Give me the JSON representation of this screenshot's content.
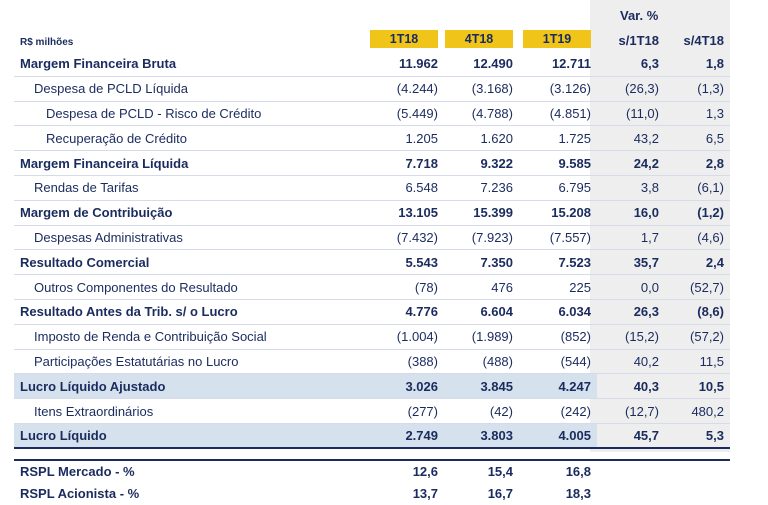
{
  "header": {
    "unit_label": "R$ milhões",
    "var_title": "Var. %",
    "periods": [
      "1T18",
      "4T18",
      "1T19"
    ],
    "var_cols": [
      "s/1T18",
      "s/4T18"
    ]
  },
  "rows": [
    {
      "label": "Margem Financeira Bruta",
      "v": [
        "11.962",
        "12.490",
        "12.711",
        "6,3",
        "1,8"
      ]
    },
    {
      "label": "Despesa de PCLD Líquida",
      "v": [
        "(4.244)",
        "(3.168)",
        "(3.126)",
        "(26,3)",
        "(1,3)"
      ]
    },
    {
      "label": "Despesa de PCLD - Risco de Crédito",
      "v": [
        "(5.449)",
        "(4.788)",
        "(4.851)",
        "(11,0)",
        "1,3"
      ]
    },
    {
      "label": "Recuperação de Crédito",
      "v": [
        "1.205",
        "1.620",
        "1.725",
        "43,2",
        "6,5"
      ]
    },
    {
      "label": "Margem Financeira Líquida",
      "v": [
        "7.718",
        "9.322",
        "9.585",
        "24,2",
        "2,8"
      ]
    },
    {
      "label": "Rendas de Tarifas",
      "v": [
        "6.548",
        "7.236",
        "6.795",
        "3,8",
        "(6,1)"
      ]
    },
    {
      "label": "Margem de Contribuição",
      "v": [
        "13.105",
        "15.399",
        "15.208",
        "16,0",
        "(1,2)"
      ]
    },
    {
      "label": "Despesas Administrativas",
      "v": [
        "(7.432)",
        "(7.923)",
        "(7.557)",
        "1,7",
        "(4,6)"
      ]
    },
    {
      "label": "Resultado Comercial",
      "v": [
        "5.543",
        "7.350",
        "7.523",
        "35,7",
        "2,4"
      ]
    },
    {
      "label": "Outros Componentes do Resultado",
      "v": [
        "(78)",
        "476",
        "225",
        "0,0",
        "(52,7)"
      ]
    },
    {
      "label": "Resultado Antes da Trib. s/ o Lucro",
      "v": [
        "4.776",
        "6.604",
        "6.034",
        "26,3",
        "(8,6)"
      ]
    },
    {
      "label": "Imposto de Renda e Contribuição Social",
      "v": [
        "(1.004)",
        "(1.989)",
        "(852)",
        "(15,2)",
        "(57,2)"
      ]
    },
    {
      "label": "Participações Estatutárias no Lucro",
      "v": [
        "(388)",
        "(488)",
        "(544)",
        "40,2",
        "11,5"
      ]
    },
    {
      "label": "Lucro Líquido Ajustado",
      "v": [
        "3.026",
        "3.845",
        "4.247",
        "40,3",
        "10,5"
      ]
    },
    {
      "label": "Itens Extraordinários",
      "v": [
        "(277)",
        "(42)",
        "(242)",
        "(12,7)",
        "480,2"
      ]
    },
    {
      "label": "Lucro Líquido",
      "v": [
        "2.749",
        "3.803",
        "4.005",
        "45,7",
        "5,3"
      ]
    }
  ],
  "footer": [
    {
      "label": "RSPL Mercado - %",
      "v": [
        "12,6",
        "15,4",
        "16,8"
      ]
    },
    {
      "label": "RSPL Acionista - %",
      "v": [
        "13,7",
        "16,7",
        "18,3"
      ]
    }
  ]
}
